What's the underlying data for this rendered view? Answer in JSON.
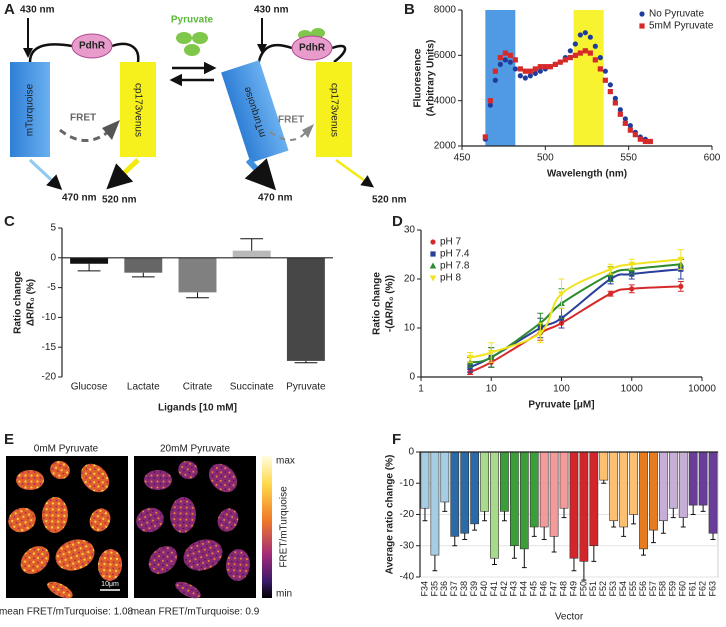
{
  "panel_labels": [
    "A",
    "B",
    "C",
    "D",
    "E",
    "F"
  ],
  "diagram": {
    "ligand": "Pyruvate",
    "states": [
      {
        "excitation": "430 nm",
        "sensor": "PdhR",
        "donor": "mTurquoise",
        "acceptor": "cp173venus",
        "fret": "FRET",
        "donor_emission": "470 nm",
        "acceptor_emission": "520 nm"
      },
      {
        "excitation": "430 nm",
        "sensor": "PdhR",
        "donor": "mTurquoise",
        "acceptor": "cp173venus",
        "fret": "FRET",
        "donor_emission": "470 nm",
        "acceptor_emission": "520 nm"
      }
    ]
  },
  "images": {
    "panels": [
      {
        "title": "0mM Pyruvate",
        "caption": "mean FRET/mTurquoise: 1.08",
        "scale_bar": "10μm"
      },
      {
        "title": "20mM Pyruvate",
        "caption": "mean FRET/mTurquoise: 0.9"
      }
    ],
    "colorbar": {
      "max": "max",
      "label": "FRET/mTurquoise",
      "min": "min"
    }
  },
  "chart_data": [
    {
      "type": "scatter",
      "xlabel": "Wavelength (nm)",
      "ylabel": [
        "Fluoresence",
        "(Arbitrary Units)"
      ],
      "xlim": [
        450,
        600
      ],
      "xticks": [
        450,
        500,
        550,
        600
      ],
      "ylim": [
        2000,
        8000
      ],
      "yticks": [
        2000,
        4000,
        6000,
        8000
      ],
      "legend": "top-right",
      "bands": [
        {
          "range": [
            464,
            482
          ],
          "color": "#3d8fe0"
        },
        {
          "range": [
            517,
            535
          ],
          "color": "#f7f21a"
        }
      ],
      "x": [
        464,
        467,
        470,
        473,
        476,
        479,
        482,
        485,
        488,
        491,
        494,
        497,
        500,
        503,
        506,
        509,
        512,
        515,
        518,
        521,
        524,
        527,
        530,
        533,
        536,
        539,
        542,
        545,
        548,
        551,
        554,
        557,
        560,
        563
      ],
      "series": [
        {
          "name": "No Pyruvate",
          "color": "#1f3c9c",
          "marker": "circle",
          "values": [
            2300,
            3800,
            4900,
            5600,
            5800,
            5700,
            5400,
            5100,
            5000,
            5100,
            5200,
            5300,
            5400,
            5500,
            5600,
            5700,
            5900,
            6200,
            6500,
            6900,
            7000,
            6800,
            6400,
            5900,
            5300,
            4700,
            4100,
            3600,
            3200,
            2900,
            2600,
            2400,
            2300,
            2200
          ]
        },
        {
          "name": "5mM Pyruvate",
          "color": "#d62a2a",
          "marker": "square",
          "values": [
            2400,
            4000,
            5300,
            5900,
            6100,
            6000,
            5800,
            5400,
            5300,
            5300,
            5400,
            5500,
            5500,
            5500,
            5600,
            5700,
            5800,
            5900,
            6000,
            6100,
            6200,
            6100,
            5800,
            5400,
            4900,
            4400,
            3900,
            3400,
            3000,
            2700,
            2500,
            2300,
            2200,
            2200
          ]
        }
      ]
    },
    {
      "type": "bar",
      "xlabel": "Ligands [10 mM]",
      "ylabel": [
        "Ratio change",
        "ΔR/R₀ (%)"
      ],
      "categories": [
        "Glucose",
        "Lactate",
        "Citrate",
        "Succinate",
        "Pyruvate"
      ],
      "values": [
        -1.0,
        -2.5,
        -5.8,
        1.2,
        -17.3
      ],
      "errors": [
        1.2,
        0.7,
        0.9,
        2.0,
        0.3
      ],
      "colors": [
        "#111111",
        "#666666",
        "#808080",
        "#b8b8b8",
        "#474747"
      ],
      "ylim": [
        -20,
        5
      ],
      "yticks": [
        5,
        0,
        -5,
        -10,
        -15,
        -20
      ],
      "grid": false
    },
    {
      "type": "line",
      "xlabel": "Pyruvate [μM]",
      "ylabel": [
        "Ratio change",
        "-(ΔR/R₀ (%))"
      ],
      "log_x": true,
      "xlim": [
        1,
        10000
      ],
      "xticks": [
        1,
        10,
        100,
        1000,
        10000
      ],
      "ylim": [
        0,
        30
      ],
      "yticks": [
        0,
        10,
        20,
        30
      ],
      "legend": "top-left",
      "x": [
        5,
        10,
        50,
        100,
        500,
        1000,
        5000
      ],
      "series": [
        {
          "name": "pH 7",
          "color": "#d62a2a",
          "marker": "circle",
          "values": [
            1,
            3,
            9,
            11,
            17,
            18,
            18.5
          ],
          "errors": [
            0.5,
            1,
            1.5,
            1,
            0.5,
            0.8,
            1
          ]
        },
        {
          "name": "pH 7.4",
          "color": "#2a3f9c",
          "marker": "square",
          "values": [
            2,
            4,
            10,
            12,
            20,
            21,
            22
          ],
          "errors": [
            1,
            2,
            2,
            2,
            1,
            1,
            2
          ]
        },
        {
          "name": "pH 7.8",
          "color": "#2e8b2e",
          "marker": "triangle",
          "values": [
            3,
            4,
            11,
            15,
            21,
            22,
            23
          ],
          "errors": [
            1,
            2,
            2,
            3,
            1.5,
            1,
            1
          ]
        },
        {
          "name": "pH 8",
          "color": "#f2e320",
          "marker": "triangle-down",
          "values": [
            4,
            5,
            9,
            17,
            22,
            23,
            24
          ],
          "errors": [
            1,
            2,
            2,
            3,
            1,
            1,
            2
          ]
        }
      ]
    },
    {
      "type": "bar",
      "xlabel": "Vector",
      "ylabel": [
        "Average ratio change (%)"
      ],
      "categories": [
        "F34",
        "F35",
        "F36",
        "F37",
        "F38",
        "F39",
        "F40",
        "F41",
        "F42",
        "F43",
        "F44",
        "F45",
        "F46",
        "F47",
        "F48",
        "F49",
        "F50",
        "F51",
        "F52",
        "F53",
        "F54",
        "F55",
        "F56",
        "F57",
        "F58",
        "F59",
        "F60",
        "F61",
        "F62",
        "F63"
      ],
      "values": [
        -18,
        -33,
        -16,
        -27,
        -26,
        -23,
        -19,
        -34,
        -19,
        -30,
        -31,
        -24,
        -24,
        -27,
        -18,
        -34,
        -35,
        -30,
        -9,
        -22,
        -24,
        -20,
        -31,
        -25,
        -22,
        -18,
        -21,
        -17,
        -17,
        -26
      ],
      "errors": [
        4,
        5,
        3,
        3,
        2,
        2,
        3,
        2,
        3,
        4,
        6,
        3,
        4,
        5,
        3,
        4,
        6,
        5,
        1,
        2,
        3,
        3,
        2,
        4,
        4,
        3,
        3,
        3,
        2,
        2
      ],
      "colors": [
        "#a6cde3",
        "#a6cde3",
        "#a6cde3",
        "#2a6aa8",
        "#2a6aa8",
        "#2a6aa8",
        "#a9d98b",
        "#a9d98b",
        "#3b9e38",
        "#3b9e38",
        "#3b9e38",
        "#3b9e38",
        "#f29b9a",
        "#f29b9a",
        "#f29b9a",
        "#d4262a",
        "#d4262a",
        "#d4262a",
        "#fdc070",
        "#fdc070",
        "#fdc070",
        "#fdc070",
        "#e67b1f",
        "#e67b1f",
        "#c6aed7",
        "#c6aed7",
        "#c6aed7",
        "#6a3d9a",
        "#6a3d9a",
        "#6a3d9a"
      ],
      "ylim": [
        -40,
        0
      ],
      "yticks": [
        0,
        -10,
        -20,
        -30,
        -40
      ],
      "grid": true
    }
  ]
}
